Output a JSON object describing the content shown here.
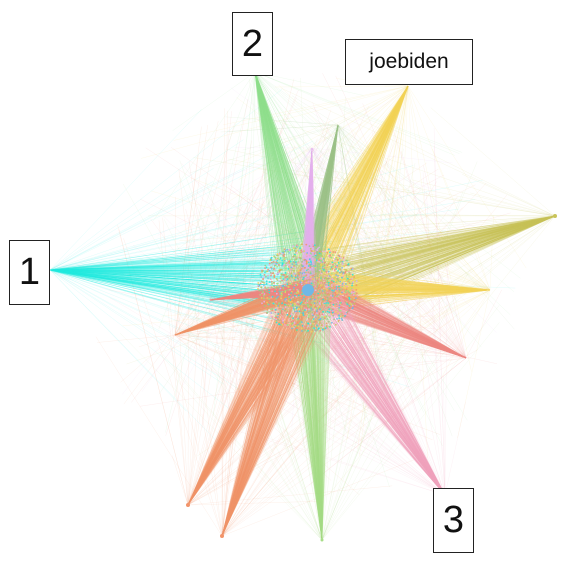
{
  "labels": {
    "one": "1",
    "two": "2",
    "three": "3",
    "joebiden": "joebiden"
  },
  "colors": {
    "cyan": "#22eae0",
    "green": "#8fe08c",
    "yellow": "#f3d35a",
    "olive": "#c9c45a",
    "orange": "#f2946a",
    "pink": "#f2a3bd",
    "salmon": "#ef8a84",
    "lime": "#a7dd88",
    "lavender": "#e4b3ef",
    "sage": "#9fc48a",
    "center_node": "#6fb8e6"
  }
}
